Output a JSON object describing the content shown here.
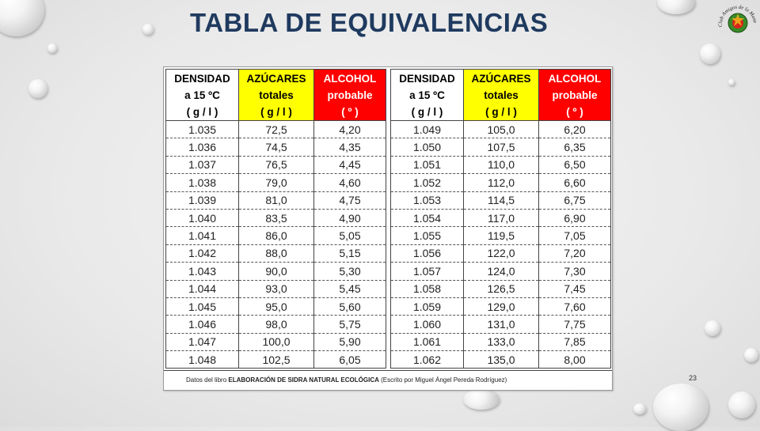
{
  "title": "TABLA DE EQUIVALENCIAS",
  "page_number": "23",
  "logo": {
    "icon": "club-seal-icon",
    "text": "Club Amigos de la Manzana"
  },
  "headers": {
    "density": [
      "DENSIDAD",
      "a 15 ºC",
      "( g / l )"
    ],
    "sugar": [
      "AZÚCARES",
      "totales",
      "( g / l )"
    ],
    "alcohol": [
      "ALCOHOL",
      "probable",
      "( º )"
    ]
  },
  "colors": {
    "yellow": "#ffff00",
    "red": "#ff0000",
    "title": "#1f3a5f"
  },
  "left_rows": [
    [
      "1.035",
      "72,5",
      "4,20"
    ],
    [
      "1.036",
      "74,5",
      "4,35"
    ],
    [
      "1.037",
      "76,5",
      "4,45"
    ],
    [
      "1.038",
      "79,0",
      "4,60"
    ],
    [
      "1.039",
      "81,0",
      "4,75"
    ],
    [
      "1.040",
      "83,5",
      "4,90"
    ],
    [
      "1.041",
      "86,0",
      "5,05"
    ],
    [
      "1.042",
      "88,0",
      "5,15"
    ],
    [
      "1.043",
      "90,0",
      "5,30"
    ],
    [
      "1.044",
      "93,0",
      "5,45"
    ],
    [
      "1.045",
      "95,0",
      "5,60"
    ],
    [
      "1.046",
      "98,0",
      "5,75"
    ],
    [
      "1.047",
      "100,0",
      "5,90"
    ],
    [
      "1.048",
      "102,5",
      "6,05"
    ]
  ],
  "right_rows": [
    [
      "1.049",
      "105,0",
      "6,20"
    ],
    [
      "1.050",
      "107,5",
      "6,35"
    ],
    [
      "1.051",
      "110,0",
      "6,50"
    ],
    [
      "1.052",
      "112,0",
      "6,60"
    ],
    [
      "1.053",
      "114,5",
      "6,75"
    ],
    [
      "1.054",
      "117,0",
      "6,90"
    ],
    [
      "1.055",
      "119,5",
      "7,05"
    ],
    [
      "1.056",
      "122,0",
      "7,20"
    ],
    [
      "1.057",
      "124,0",
      "7,30"
    ],
    [
      "1.058",
      "126,5",
      "7,45"
    ],
    [
      "1.059",
      "129,0",
      "7,60"
    ],
    [
      "1.060",
      "131,0",
      "7,75"
    ],
    [
      "1.061",
      "133,0",
      "7,85"
    ],
    [
      "1.062",
      "135,0",
      "8,00"
    ]
  ],
  "footer": {
    "prefix": "Datos del libro ",
    "book": "ELABORACIÓN DE SIDRA NATURAL ECOLÓGICA",
    "suffix": " (Escrito por Miguel Ángel Pereda Rodríguez)"
  }
}
